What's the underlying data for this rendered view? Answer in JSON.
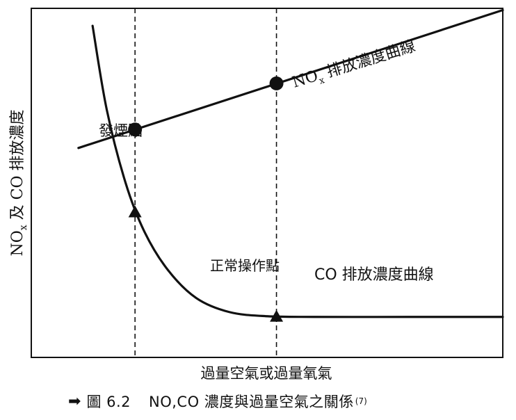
{
  "chart_data": {
    "type": "line",
    "ylabel": {
      "main": "NO",
      "sub": "x",
      "rest": " 及 CO 排放濃度"
    },
    "xlabel": "過量空氣或過量氧氣",
    "xlim": [
      0,
      10
    ],
    "ylim": [
      0,
      10
    ],
    "series": [
      {
        "name": "NOx 排放濃度曲線",
        "label_main": "NO",
        "label_sub": "x",
        "label_rest": " 排放濃度曲線",
        "x": [
          1.0,
          10.0
        ],
        "y": [
          6.0,
          9.95
        ]
      },
      {
        "name": "CO 排放濃度曲線",
        "x": [
          1.3,
          1.6,
          2.0,
          2.4,
          2.9,
          3.5,
          4.2,
          5.0,
          6.0,
          8.0,
          10.0
        ],
        "y": [
          9.5,
          7.1,
          5.0,
          3.6,
          2.5,
          1.7,
          1.3,
          1.18,
          1.16,
          1.16,
          1.16
        ]
      }
    ],
    "vlines": [
      2.2,
      5.2
    ],
    "markers": [
      {
        "shape": "circle",
        "x": 2.2,
        "y": 6.53
      },
      {
        "shape": "circle",
        "x": 5.2,
        "y": 7.85
      },
      {
        "shape": "triangle",
        "x": 2.2,
        "y": 4.15
      },
      {
        "shape": "triangle",
        "x": 5.2,
        "y": 1.16
      }
    ],
    "annotations": {
      "smoke_point": "發煙點",
      "operating_point": "正常操作點"
    }
  },
  "caption": {
    "number": "圖 6.2",
    "text": "NO,CO 濃度與過量空氣之關係",
    "ref": "(7)"
  }
}
